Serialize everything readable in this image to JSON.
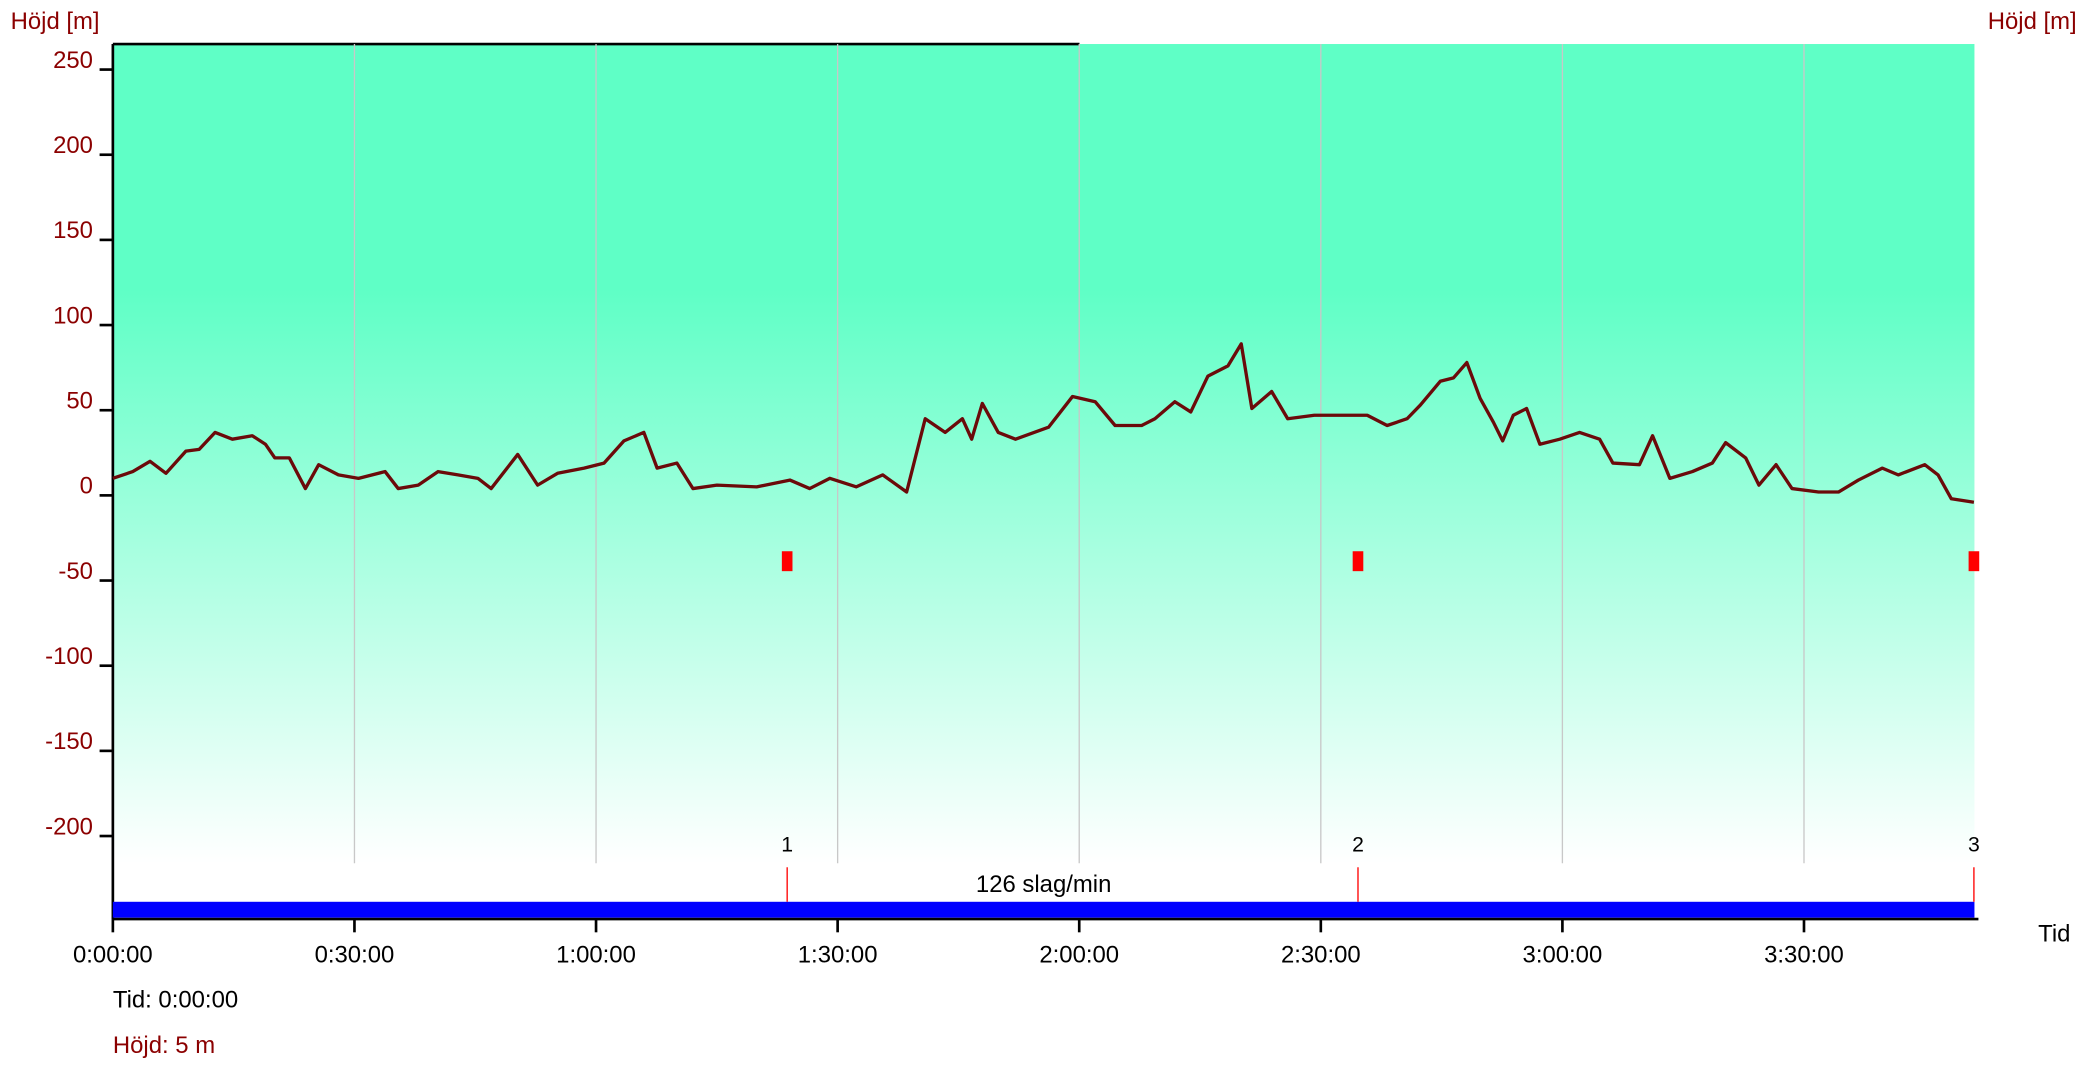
{
  "chart_data": {
    "type": "line",
    "y_label": "Höjd [m]",
    "y2_label": "Höjd [m]",
    "x_label": "Tid",
    "x": [
      0,
      148,
      277,
      396,
      544,
      643,
      762,
      890,
      1039,
      1137,
      1207,
      1315,
      1434,
      1533,
      1681,
      1830,
      2028,
      2126,
      2275,
      2423,
      2571,
      2720,
      2819,
      3016,
      3165,
      3313,
      3511,
      3659,
      3808,
      3956,
      4055,
      4203,
      4322,
      4500,
      4797,
      5044,
      5192,
      5341,
      5538,
      5736,
      5914,
      6053,
      6201,
      6330,
      6399,
      6478,
      6597,
      6725,
      6972,
      7150,
      7319,
      7467,
      7665,
      7764,
      7912,
      8031,
      8159,
      8308,
      8407,
      8486,
      8634,
      8753,
      8951,
      9148,
      9346,
      9494,
      9643,
      9742,
      9890,
      9989,
      10088,
      10187,
      10286,
      10355,
      10434,
      10533,
      10632,
      10780,
      10928,
      11077,
      11176,
      11374,
      11472,
      11601,
      11769,
      11917,
      12016,
      12165,
      12264,
      12392,
      12511,
      12709,
      12857,
      13005,
      13183,
      13302,
      13500,
      13599,
      13698,
      13866
    ],
    "values": [
      10,
      14,
      20,
      13,
      26,
      27,
      37,
      33,
      35,
      30,
      22,
      22,
      4,
      18,
      12,
      10,
      14,
      4,
      6,
      14,
      12,
      10,
      4,
      24,
      6,
      13,
      16,
      19,
      32,
      37,
      16,
      19,
      4,
      6,
      5,
      9,
      4,
      10,
      5,
      12,
      2,
      45,
      37,
      45,
      33,
      54,
      37,
      33,
      40,
      58,
      55,
      41,
      41,
      45,
      55,
      49,
      70,
      76,
      89,
      51,
      61,
      45,
      47,
      47,
      47,
      41,
      45,
      53,
      67,
      69,
      78,
      57,
      43,
      32,
      47,
      51,
      30,
      33,
      37,
      33,
      19,
      18,
      35,
      10,
      14,
      19,
      31,
      22,
      6,
      18,
      4,
      2,
      2,
      9,
      16,
      12,
      18,
      12,
      -2,
      -4
    ],
    "color": "#6b0a0a",
    "xlim": [
      0,
      13870
    ],
    "ylim": [
      -216,
      265
    ],
    "xticks": [
      {
        "value": 0,
        "label": "0:00:00"
      },
      {
        "value": 1800,
        "label": "0:30:00"
      },
      {
        "value": 3600,
        "label": "1:00:00"
      },
      {
        "value": 5400,
        "label": "1:30:00"
      },
      {
        "value": 7200,
        "label": "2:00:00"
      },
      {
        "value": 9000,
        "label": "2:30:00"
      },
      {
        "value": 10800,
        "label": "3:00:00"
      },
      {
        "value": 12600,
        "label": "3:30:00"
      }
    ],
    "yticks": [
      -200,
      -150,
      -100,
      -50,
      0,
      50,
      100,
      150,
      200,
      250
    ],
    "laps": [
      {
        "label": "1",
        "x": 5024
      },
      {
        "label": "2",
        "x": 9277
      },
      {
        "label": "3",
        "x": 13866
      }
    ],
    "band_label": "126 slag/min",
    "grid": true
  },
  "status": {
    "time": "Tid: 0:00:00",
    "height": "Höjd: 5 m"
  }
}
